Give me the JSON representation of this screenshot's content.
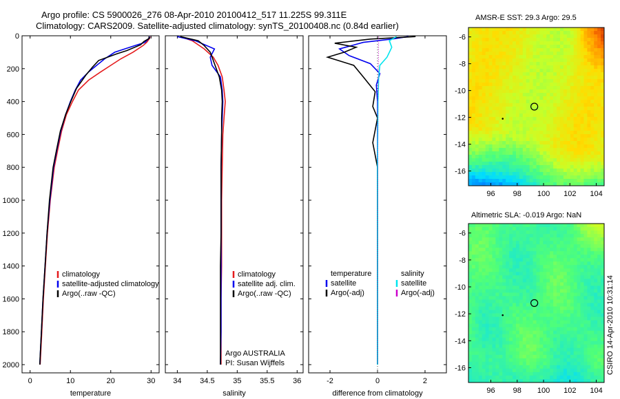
{
  "header": {
    "title_line1": "Argo profile: CS 5900026_276 08-Apr-2010 20100412_517 11.225S 99.311E",
    "title_line2": "Climatology: CARS2009. Satellite-adjusted climatology: synTS_20100408.nc (0.84d earlier)"
  },
  "stamp": "CSIRO 14-Apr-2010 10:31:14",
  "colors": {
    "climatology": "#e41a1c",
    "satellite": "#0000ee",
    "argo": "#000000",
    "satellite_diff": "#00e5ee",
    "argo_adj_sal": "#cc00cc"
  },
  "chart_data": [
    {
      "type": "line",
      "id": "temperature",
      "xlabel": "temperature",
      "ylabel": "",
      "xlim": [
        -2,
        32
      ],
      "ylim": [
        2050,
        0
      ],
      "xticks": [
        0,
        10,
        20,
        30
      ],
      "yticks": [
        0,
        200,
        400,
        600,
        800,
        1000,
        1200,
        1400,
        1600,
        1800,
        2000
      ],
      "legend": [
        "climatology",
        "satellite-adjusted climatology",
        "Argo(..raw -QC)"
      ],
      "series": [
        {
          "key": "climatology",
          "color": "#e41a1c",
          "x": [
            29.8,
            29.5,
            28.9,
            28.0,
            25.5,
            22.5,
            20.0,
            17.5,
            14.5,
            12.0,
            10.5,
            9.0,
            7.8,
            6.8,
            6.0,
            5.0,
            4.3,
            3.8,
            3.3,
            2.9,
            2.6,
            2.5
          ],
          "y": [
            5,
            20,
            40,
            60,
            100,
            140,
            180,
            220,
            270,
            330,
            400,
            480,
            580,
            700,
            800,
            1000,
            1200,
            1400,
            1600,
            1800,
            1950,
            2000
          ]
        },
        {
          "key": "satellite",
          "color": "#0000ee",
          "x": [
            29.7,
            29.3,
            28.5,
            26.0,
            21.0,
            18.5,
            16.5,
            14.5,
            12.5,
            11.2,
            10.0,
            8.8,
            7.6,
            6.6,
            5.8,
            4.9,
            4.2,
            3.7,
            3.2,
            2.8,
            2.5,
            2.4
          ],
          "y": [
            5,
            20,
            40,
            60,
            100,
            140,
            180,
            220,
            270,
            330,
            400,
            480,
            580,
            700,
            800,
            1000,
            1200,
            1400,
            1600,
            1800,
            1950,
            2000
          ]
        },
        {
          "key": "argo",
          "color": "#000000",
          "x": [
            29.4,
            29.6,
            28.2,
            27.4,
            24.0,
            21.5,
            17.0,
            15.5,
            13.8,
            11.5,
            10.1,
            8.8,
            7.5,
            6.5,
            5.7,
            4.8,
            4.2,
            3.7,
            3.2,
            2.8,
            2.5,
            2.4
          ],
          "y": [
            5,
            15,
            35,
            55,
            90,
            110,
            150,
            190,
            240,
            320,
            400,
            480,
            580,
            700,
            800,
            1000,
            1200,
            1400,
            1600,
            1800,
            1950,
            2000
          ]
        }
      ]
    },
    {
      "type": "line",
      "id": "salinity",
      "xlabel": "salinity",
      "ylabel": "",
      "xlim": [
        33.8,
        36.1
      ],
      "ylim": [
        2050,
        0
      ],
      "xticks": [
        34,
        34.5,
        35,
        35.5,
        36
      ],
      "legend": [
        "climatology",
        "satellite adj. clim.",
        "Argo(..raw -QC)"
      ],
      "annotation": [
        "Argo AUSTRALIA",
        "PI: Susan Wijffels"
      ],
      "series": [
        {
          "key": "climatology",
          "color": "#e41a1c",
          "x": [
            34.05,
            34.25,
            34.45,
            34.6,
            34.68,
            34.75,
            34.78,
            34.8,
            34.78,
            34.76,
            34.75,
            34.74,
            34.74,
            34.74,
            34.73,
            34.73,
            34.73
          ],
          "y": [
            5,
            30,
            80,
            130,
            180,
            250,
            330,
            400,
            500,
            600,
            800,
            1000,
            1200,
            1400,
            1600,
            1800,
            2000
          ]
        },
        {
          "key": "satellite",
          "color": "#0000ee",
          "x": [
            34.0,
            34.3,
            34.62,
            34.55,
            34.58,
            34.72,
            34.75,
            34.76,
            34.75,
            34.74,
            34.73,
            34.73,
            34.73,
            34.73,
            34.73,
            34.73,
            34.72
          ],
          "y": [
            5,
            30,
            80,
            130,
            180,
            250,
            330,
            400,
            500,
            600,
            800,
            1000,
            1200,
            1400,
            1600,
            1800,
            2000
          ]
        },
        {
          "key": "argo",
          "color": "#000000",
          "x": [
            34.05,
            34.35,
            34.45,
            34.55,
            34.6,
            34.7,
            34.74,
            34.75,
            34.74,
            34.74,
            34.73,
            34.73,
            34.73,
            34.72,
            34.72,
            34.72
          ],
          "y": [
            5,
            30,
            60,
            100,
            150,
            250,
            330,
            400,
            500,
            600,
            800,
            1000,
            1200,
            1400,
            1600,
            2000
          ]
        }
      ]
    },
    {
      "type": "line",
      "id": "difference",
      "xlabel": "difference from climatology",
      "ylabel": "",
      "xlim": [
        -2.9,
        2.9
      ],
      "ylim": [
        2050,
        0
      ],
      "xticks": [
        -2,
        0,
        2
      ],
      "legend": [
        "temperature",
        "satellite",
        "Argo(-adj)",
        "salinity",
        "satellite",
        "Argo(-adj)"
      ],
      "series": [
        {
          "key": "temp_sat",
          "color": "#0000ee",
          "x": [
            1.3,
            0.6,
            -0.6,
            -1.6,
            -1.2,
            -0.3,
            0.1,
            -0.05,
            0.0,
            0.0,
            0.0,
            0.0,
            0.0,
            0.0,
            0.0
          ],
          "y": [
            5,
            20,
            40,
            80,
            120,
            170,
            230,
            300,
            400,
            600,
            800,
            1200,
            1600,
            1800,
            2000
          ]
        },
        {
          "key": "temp_argo",
          "color": "#000000",
          "x": [
            1.6,
            -0.3,
            -1.8,
            -0.9,
            -1.4,
            -2.1,
            -1.0,
            -0.6,
            -0.1,
            -0.2,
            0.0,
            -0.2,
            0.0,
            0.0,
            0.0
          ],
          "y": [
            5,
            20,
            45,
            70,
            100,
            130,
            180,
            250,
            340,
            430,
            500,
            650,
            800,
            1000,
            2000
          ]
        },
        {
          "key": "sal_sat",
          "color": "#00e5ee",
          "x": [
            0.8,
            0.5,
            0.6,
            0.4,
            0.1,
            0.05,
            0.02,
            0.0,
            0.0,
            0.0,
            0.0,
            0.0
          ],
          "y": [
            5,
            30,
            70,
            130,
            180,
            250,
            400,
            800,
            1200,
            1600,
            1800,
            2000
          ]
        },
        {
          "key": "sal_argo",
          "color": "#cc00cc",
          "dotted": true,
          "x": [
            0.05,
            0.02,
            0.0,
            0.0
          ],
          "y": [
            5,
            400,
            1200,
            2000
          ]
        }
      ]
    },
    {
      "type": "heatmap",
      "id": "amsr_sst",
      "title": "AMSR-E SST: 29.3  Argo: 29.5",
      "xlim": [
        94.3,
        104.6
      ],
      "ylim": [
        -17.1,
        -5.3
      ],
      "xticks": [
        96,
        98,
        100,
        102,
        104
      ],
      "yticks": [
        -6,
        -8,
        -10,
        -12,
        -14,
        -16
      ],
      "marker": {
        "lon": 99.3,
        "lat": -11.2
      }
    },
    {
      "type": "heatmap",
      "id": "altimetric_sla",
      "title": "Altimetric SLA: -0.019  Argo: NaN",
      "xlim": [
        94.3,
        104.6
      ],
      "ylim": [
        -17.1,
        -5.3
      ],
      "xticks": [
        96,
        98,
        100,
        102,
        104
      ],
      "yticks": [
        -6,
        -8,
        -10,
        -12,
        -14,
        -16
      ],
      "marker": {
        "lon": 99.3,
        "lat": -11.2
      }
    }
  ]
}
